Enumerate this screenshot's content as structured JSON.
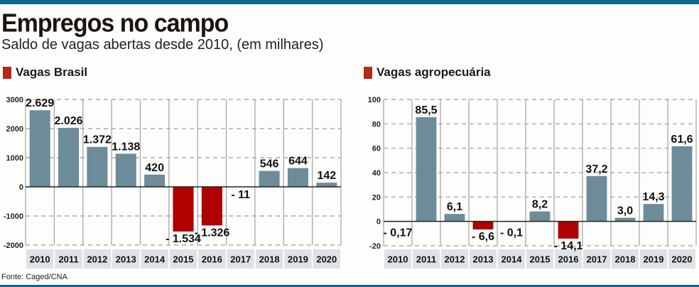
{
  "header": {
    "title": "Empregos no campo",
    "subtitle": "Saldo de vagas abertas desde 2010, (em milhares)"
  },
  "source": "Fonte: Caged/CNA",
  "colors": {
    "positive": "#6c8c9a",
    "negative": "#b00000",
    "legend_square": "#b42a16",
    "accent_bar": "#0e6a8c",
    "year_band": "#dde2e6"
  },
  "chart_data": [
    {
      "type": "bar",
      "title": "Vagas Brasil",
      "categories": [
        "2010",
        "2011",
        "2012",
        "2013",
        "2014",
        "2015",
        "2016",
        "2017",
        "2018",
        "2019",
        "2020"
      ],
      "values": [
        2629,
        2026,
        1372,
        1138,
        420,
        -1534,
        -1326,
        -11,
        546,
        644,
        142
      ],
      "labels": [
        "2.629",
        "2.026",
        "1.372",
        "1.138",
        "420",
        "- 1.534",
        "- 1.326",
        "- 11",
        "546",
        "644",
        "142"
      ],
      "yticks": [
        3000,
        2000,
        1000,
        0,
        -1000,
        -2000
      ],
      "ytick_labels": [
        "3000",
        "2000",
        "1000",
        "0",
        "-1000",
        "-2000"
      ],
      "ylim": [
        -2000,
        3000
      ],
      "xlabel": "",
      "ylabel": "",
      "grid": true
    },
    {
      "type": "bar",
      "title": "Vagas agropecuária",
      "categories": [
        "2010",
        "2011",
        "2012",
        "2013",
        "2014",
        "2015",
        "2016",
        "2017",
        "2018",
        "2019",
        "2020"
      ],
      "values": [
        -0.17,
        85.5,
        6.1,
        -6.6,
        -0.1,
        8.2,
        -14.1,
        37.2,
        3.0,
        14.3,
        61.6
      ],
      "labels": [
        "- 0,17",
        "85,5",
        "6,1",
        "- 6,6",
        "- 0,1",
        "8,2",
        "- 14,1",
        "37,2",
        "3,0",
        "14,3",
        "61,6"
      ],
      "yticks": [
        100,
        80,
        60,
        40,
        20,
        0,
        -20
      ],
      "ytick_labels": [
        "100",
        "80",
        "60",
        "40",
        "20",
        "0",
        "-20"
      ],
      "ylim": [
        -20,
        100
      ],
      "xlabel": "",
      "ylabel": "",
      "grid": true
    }
  ]
}
